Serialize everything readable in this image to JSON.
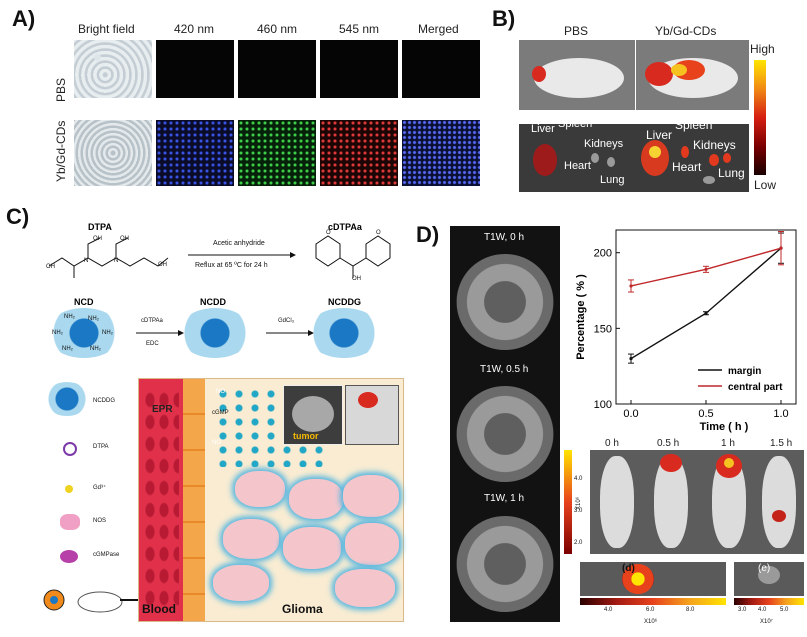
{
  "panelA": {
    "label": "A)",
    "columns": [
      "Bright field",
      "420 nm",
      "460 nm",
      "545 nm",
      "Merged"
    ],
    "rows": [
      "PBS",
      "Yb/Gd-CDs"
    ]
  },
  "panelB": {
    "label": "B)",
    "groups": [
      "PBS",
      "Yb/Gd-CDs"
    ],
    "organs_left": {
      "liver": "Liver",
      "spleen": "Spleen",
      "kidneys": "Kidneys",
      "heart": "Heart",
      "lung": "Lung"
    },
    "organs_right": {
      "liver": "Liver",
      "spleen": "Spleen",
      "kidneys": "Kidneys",
      "heart": "Heart",
      "lung": "Lung"
    },
    "scale_high": "High",
    "scale_low": "Low"
  },
  "panelC": {
    "label": "C)",
    "dtpa": "DTPA",
    "cdtpaa": "cDTPAa",
    "reagent1": "Acetic anhydride",
    "conditions1": "Reflux at 65 ºC for 24 h",
    "ncd": "NCD",
    "ncdd": "NCDD",
    "ncddg": "NCDDG",
    "reagent2": "cDTPAa",
    "reagent2b": "EDC",
    "reagent3": "GdCl₃",
    "legend": [
      "NCDDG",
      "DTPA",
      "Gd³⁺",
      "NOS",
      "cGMPase"
    ],
    "epr": "EPR",
    "no": "NO",
    "cgmp": "cGMP",
    "tumor": "tumor",
    "blood": "Blood",
    "glioma": "Glioma",
    "nh2": "NH₂",
    "oh": "OH",
    "o": "O",
    "n": "N"
  },
  "panelD": {
    "label": "D)",
    "mri_labels": [
      "T1W, 0 h",
      "T1W, 0.5 h",
      "T1W, 1 h"
    ],
    "fl_times": [
      "0 h",
      "0.5 h",
      "1 h",
      "1.5 h"
    ],
    "fl_scale_ticks": [
      "4.0",
      "3.0",
      "2.0"
    ],
    "fl_scale_unit": "X10⁶",
    "organ_scale1_ticks": [
      "4.0",
      "6.0",
      "8.0"
    ],
    "organ_scale1_unit": "X10⁶",
    "organ_scale2_ticks": [
      "3.0",
      "4.0",
      "5.0"
    ],
    "organ_scale2_unit": "X10⁷",
    "organ_tags": [
      "(d)",
      "(e)"
    ]
  },
  "chart_data": {
    "type": "line",
    "xlabel": "Time ( h )",
    "ylabel": "Percentage ( % )",
    "xlim": [
      -0.1,
      1.1
    ],
    "ylim": [
      100,
      215
    ],
    "xticks": [
      "0.0",
      "0.5",
      "1.0"
    ],
    "yticks": [
      "100",
      "150",
      "200"
    ],
    "legend_position": "bottom-right",
    "series": [
      {
        "name": "margin",
        "color": "#111111",
        "x": [
          0,
          0.5,
          1.0
        ],
        "y": [
          130,
          160,
          203
        ],
        "err": [
          3,
          1,
          10
        ]
      },
      {
        "name": "central part",
        "color": "#c0292b",
        "x": [
          0,
          0.5,
          1.0
        ],
        "y": [
          178,
          189,
          203
        ],
        "err": [
          4,
          2,
          11
        ]
      }
    ]
  },
  "colors": {
    "heat_high": "#ffe400",
    "heat_mid": "#e3221b",
    "heat_low": "#3a0000",
    "blood": "#e0304a",
    "tissue": "#f8e5c0",
    "glioma_cell": "#f4c6cc",
    "nucleus": "#8a8a8a",
    "dot_blue": "#1e7fc8",
    "dot_teal": "#22a7c6"
  }
}
